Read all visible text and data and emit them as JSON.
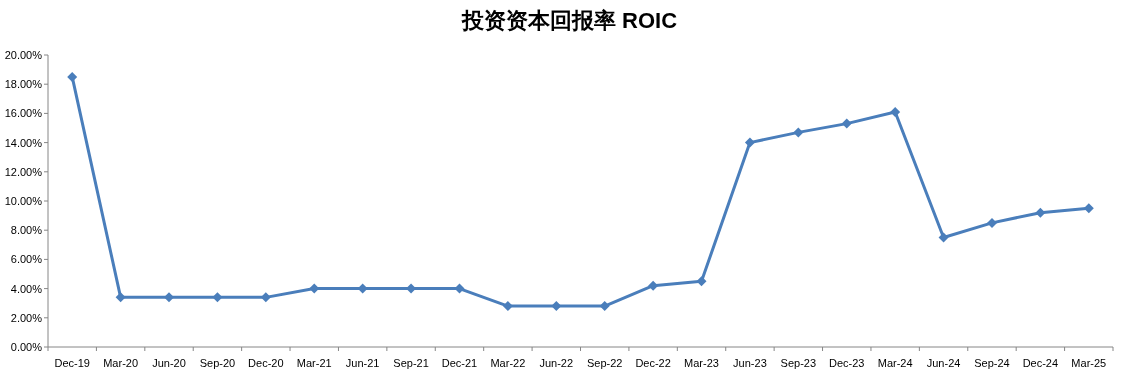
{
  "chart_data": {
    "type": "line",
    "title": "投资资本回报率 ROIC",
    "categories": [
      "Dec-19",
      "Mar-20",
      "Jun-20",
      "Sep-20",
      "Dec-20",
      "Mar-21",
      "Jun-21",
      "Sep-21",
      "Dec-21",
      "Mar-22",
      "Jun-22",
      "Sep-22",
      "Dec-22",
      "Mar-23",
      "Jun-23",
      "Sep-23",
      "Dec-23",
      "Mar-24",
      "Jun-24",
      "Sep-24",
      "Dec-24",
      "Mar-25"
    ],
    "series": [
      {
        "color": "#4a7ebb",
        "values": [
          18.5,
          3.4,
          3.4,
          3.4,
          3.4,
          4.0,
          4.0,
          4.0,
          4.0,
          2.8,
          2.8,
          2.8,
          4.2,
          4.5,
          14.0,
          14.7,
          15.3,
          16.1,
          7.5,
          8.5,
          9.2,
          9.5
        ]
      }
    ],
    "ylim": [
      0,
      20
    ],
    "yticks": [
      {
        "value": 0,
        "label": "0.00%"
      },
      {
        "value": 2,
        "label": "2.00%"
      },
      {
        "value": 4,
        "label": "4.00%"
      },
      {
        "value": 6,
        "label": "6.00%"
      },
      {
        "value": 8,
        "label": "8.00%"
      },
      {
        "value": 10,
        "label": "10.00%"
      },
      {
        "value": 12,
        "label": "12.00%"
      },
      {
        "value": 14,
        "label": "14.00%"
      },
      {
        "value": 16,
        "label": "16.00%"
      },
      {
        "value": 18,
        "label": "18.00%"
      },
      {
        "value": 20,
        "label": "20.00%"
      }
    ],
    "grid": false,
    "marker": "diamond",
    "line_style": "solid"
  }
}
